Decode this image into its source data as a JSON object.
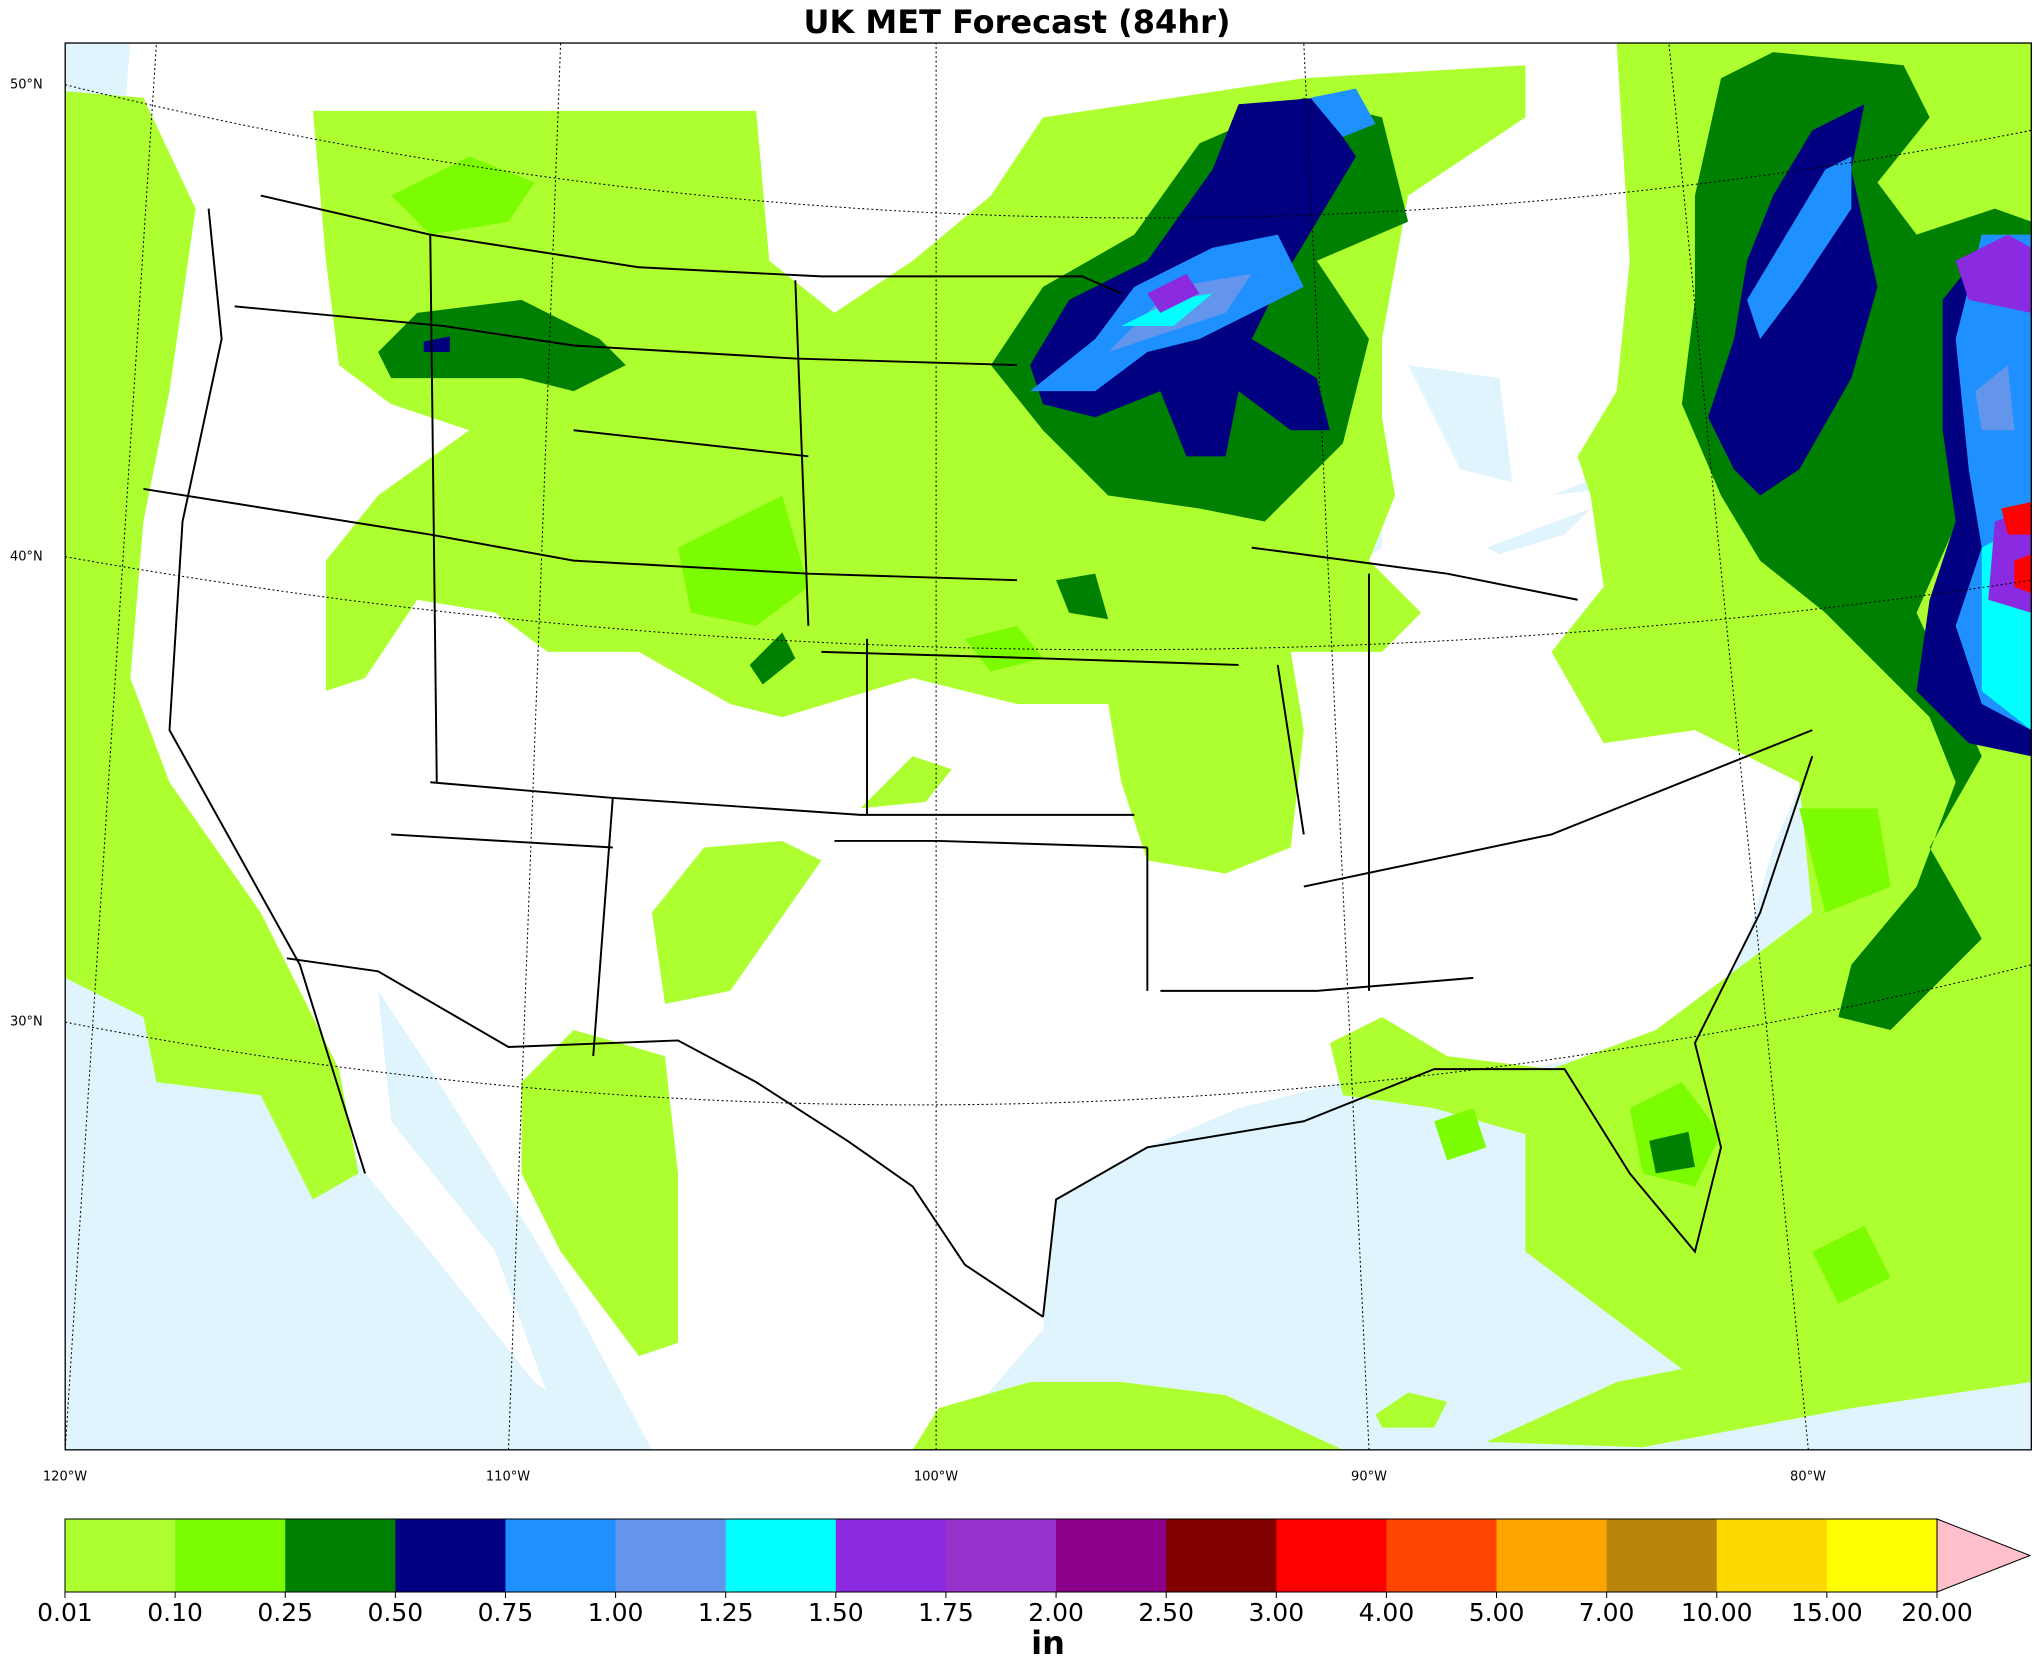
{
  "title": "UK MET Forecast (84hr)",
  "map": {
    "lat_labels": [
      "50°N",
      "40°N",
      "30°N"
    ],
    "lon_labels": [
      "120°W",
      "110°W",
      "100°W",
      "90°W",
      "80°W"
    ]
  },
  "colorbar": {
    "colors": [
      "#adff2f",
      "#7cfc00",
      "#008000",
      "#000080",
      "#1e90ff",
      "#6495ed",
      "#00ffff",
      "#8a2be2",
      "#9932cc",
      "#8b008b",
      "#800000",
      "#ff0000",
      "#ff4500",
      "#ffa500",
      "#b8860b",
      "#ffd700",
      "#ffff00"
    ],
    "extend_color": "#ffc0cb",
    "tick_labels": [
      "0.01",
      "0.10",
      "0.25",
      "0.50",
      "0.75",
      "1.00",
      "1.25",
      "1.50",
      "1.75",
      "2.00",
      "2.50",
      "3.00",
      "4.00",
      "5.00",
      "7.00",
      "10.00",
      "15.00",
      "20.00"
    ],
    "label": "in"
  }
}
